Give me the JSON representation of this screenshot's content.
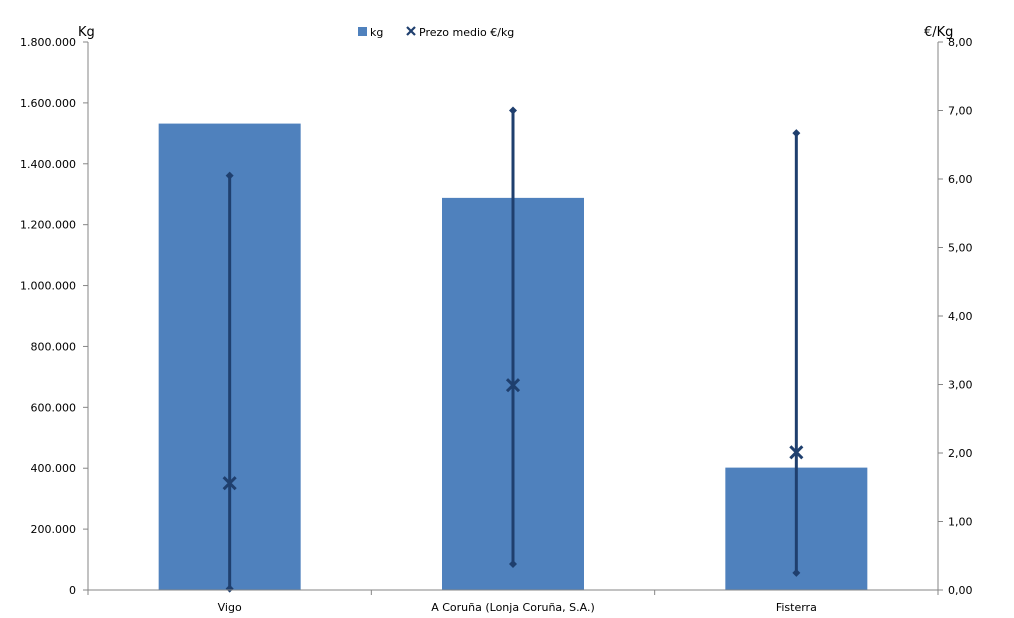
{
  "chart_data": {
    "type": "bar",
    "categories": [
      "Vigo",
      "A Coruña (Lonja Coruña, S.A.)",
      "Fisterra"
    ],
    "series": [
      {
        "name": "kg",
        "type": "bar",
        "axis": "left",
        "values": [
          1532000,
          1288000,
          402000
        ]
      },
      {
        "name": "Prezo medio €/kg",
        "type": "marker",
        "axis": "right",
        "values": [
          1.56,
          2.99,
          2.01
        ]
      }
    ],
    "price_range": {
      "min": [
        0.02,
        0.38,
        0.25
      ],
      "max": [
        6.05,
        7.0,
        6.67
      ]
    },
    "y_left": {
      "label": "Kg",
      "lim": [
        0,
        1800000
      ],
      "ticks": [
        "0",
        "200.000",
        "400.000",
        "600.000",
        "800.000",
        "1.000.000",
        "1.200.000",
        "1.400.000",
        "1.600.000",
        "1.800.000"
      ]
    },
    "y_right": {
      "label": "€/Kg",
      "lim": [
        0,
        8
      ],
      "ticks": [
        "0,00",
        "1,00",
        "2,00",
        "3,00",
        "4,00",
        "5,00",
        "6,00",
        "7,00",
        "8,00"
      ]
    },
    "legend": {
      "position": "top",
      "items": [
        "kg",
        "Prezo medio €/kg"
      ]
    },
    "grid": false,
    "colors": {
      "bar": "#4f81bd",
      "line": "#1f3f6e",
      "axis": "#868686"
    }
  }
}
